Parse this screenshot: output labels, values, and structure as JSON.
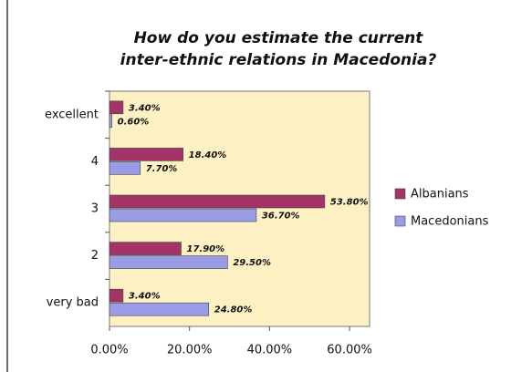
{
  "chart_data": {
    "type": "hbar",
    "title": "How do you estimate the current inter-ethnic relations in Macedonia?",
    "categories": [
      "excellent",
      "4",
      "3",
      "2",
      "very bad"
    ],
    "series": [
      {
        "name": "Albanians",
        "color": "#a23468",
        "values": [
          3.4,
          18.4,
          53.8,
          17.9,
          3.4
        ],
        "value_labels": [
          "3.40%",
          "18.40%",
          "53.80%",
          "17.90%",
          "3.40%"
        ]
      },
      {
        "name": "Macedonians",
        "color": "#9a9ce6",
        "values": [
          0.6,
          7.7,
          36.7,
          29.5,
          24.8
        ],
        "value_labels": [
          "0.60%",
          "7.70%",
          "36.70%",
          "29.50%",
          "24.80%"
        ]
      }
    ],
    "xlim": [
      0,
      65
    ],
    "xticks": [
      {
        "value": 0,
        "label": "0.00%"
      },
      {
        "value": 20,
        "label": "20.00%"
      },
      {
        "value": 40,
        "label": "40.00%"
      },
      {
        "value": 60,
        "label": "60.00%"
      }
    ],
    "legend": "right"
  }
}
